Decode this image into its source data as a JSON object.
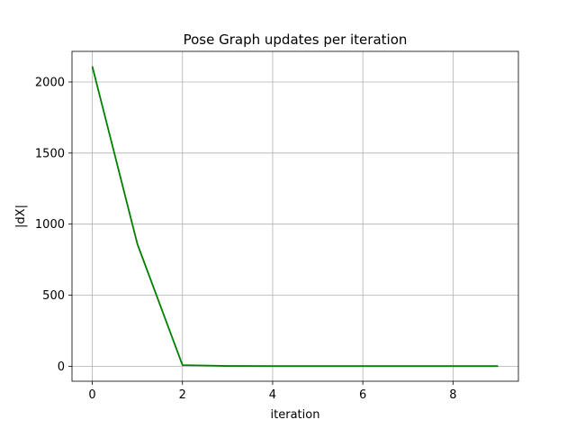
{
  "chart_data": {
    "type": "line",
    "title": "Pose Graph updates per iteration",
    "xlabel": "iteration",
    "ylabel": "|dX|",
    "xlim": [
      -0.45,
      9.45
    ],
    "ylim": [
      -105.5,
      2215.5
    ],
    "xticks": [
      0,
      2,
      4,
      6,
      8
    ],
    "yticks": [
      0,
      500,
      1000,
      1500,
      2000
    ],
    "grid": true,
    "series": [
      {
        "color": "#008000",
        "x": [
          0,
          1,
          2,
          3,
          4,
          5,
          6,
          7,
          8,
          9
        ],
        "y": [
          2110,
          860,
          8,
          2,
          1,
          1,
          1,
          1,
          1,
          1
        ]
      }
    ]
  }
}
